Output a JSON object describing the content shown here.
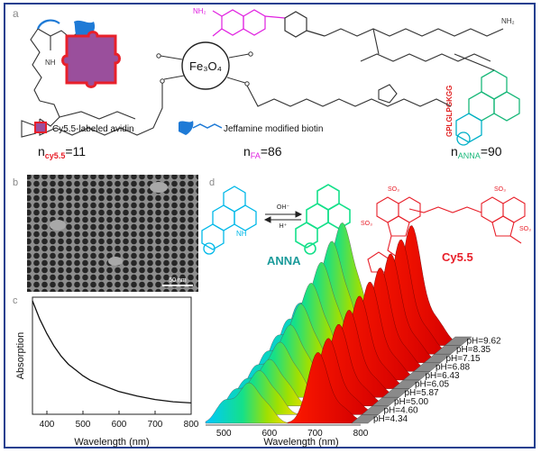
{
  "panels": {
    "a": "a",
    "b": "b",
    "c": "c",
    "d": "d"
  },
  "panel_a": {
    "core": "Fe₃O₄",
    "peptide": "GPLGLPGKGG",
    "amine": "NH₂",
    "imine": "NH",
    "legend_avidin": "Cy5.5-labeled avidin",
    "legend_biotin": "Jeffamine modified biotin",
    "n_cy55_prefix": "n",
    "n_cy55_sub": "cy5.5",
    "n_cy55_value": "=11",
    "n_fa_prefix": "n",
    "n_fa_sub": "FA",
    "n_fa_value": "=86",
    "n_anna_prefix": "n",
    "n_anna_sub": "ANNA",
    "n_anna_value": "=90",
    "colors": {
      "folate": "#e020e0",
      "cy55": "#e8202a",
      "anna": "#1ab87a",
      "biotin": "#1e7ad6",
      "peptide": "#e02020"
    }
  },
  "panel_b": {
    "scale_bar": "50 nm"
  },
  "panel_d": {
    "anna_label": "ANNA",
    "cy55_label": "Cy5.5",
    "reaction_forward": "OH⁻",
    "reaction_back": "H⁺",
    "sulfonate": "SO₃"
  },
  "chart_data": [
    {
      "type": "line",
      "title": "",
      "xlabel": "Wavelength (nm)",
      "ylabel": "Absorption",
      "xlim": [
        360,
        800
      ],
      "x_ticks": [
        400,
        500,
        600,
        700,
        800
      ],
      "series": [
        {
          "x": [
            360,
            380,
            400,
            420,
            440,
            460,
            480,
            500,
            520,
            550,
            600,
            650,
            700,
            750,
            800
          ],
          "y": [
            1.0,
            0.84,
            0.71,
            0.6,
            0.51,
            0.44,
            0.39,
            0.34,
            0.3,
            0.26,
            0.2,
            0.16,
            0.13,
            0.11,
            0.1
          ]
        }
      ]
    },
    {
      "type": "area",
      "title": "",
      "xlabel": "Wavelength (nm)",
      "xlim": [
        460,
        800
      ],
      "x_ticks": [
        500,
        600,
        700,
        800
      ],
      "series": [
        {
          "name": "pH=4.34",
          "anna_peak": 0.33,
          "cy55_peak": 0.52
        },
        {
          "name": "pH=4.60",
          "anna_peak": 0.36,
          "cy55_peak": 0.56
        },
        {
          "name": "pH=5.00",
          "anna_peak": 0.38,
          "cy55_peak": 0.6
        },
        {
          "name": "pH=5.87",
          "anna_peak": 0.45,
          "cy55_peak": 0.64
        },
        {
          "name": "pH=6.05",
          "anna_peak": 0.52,
          "cy55_peak": 0.68
        },
        {
          "name": "pH=6.43",
          "anna_peak": 0.62,
          "cy55_peak": 0.72
        },
        {
          "name": "pH=6.88",
          "anna_peak": 0.72,
          "cy55_peak": 0.76
        },
        {
          "name": "pH=7.15",
          "anna_peak": 0.82,
          "cy55_peak": 0.8
        },
        {
          "name": "pH=8.35",
          "anna_peak": 0.92,
          "cy55_peak": 0.84
        },
        {
          "name": "pH=9.62",
          "anna_peak": 1.0,
          "cy55_peak": 0.88
        }
      ]
    }
  ]
}
